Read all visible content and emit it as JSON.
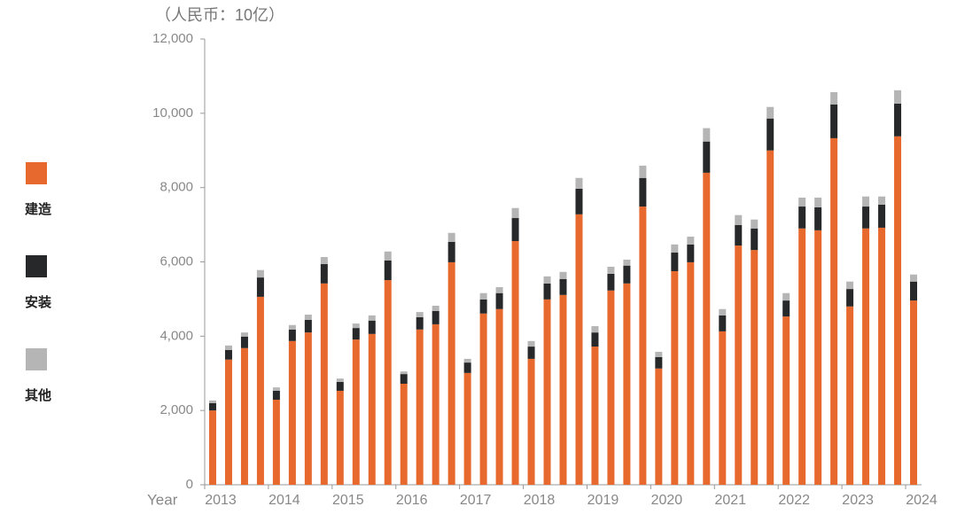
{
  "chart_data": {
    "type": "stacked_bar",
    "unit_label": "（人民币：10亿）",
    "x_label": "Year",
    "categories": [
      "2013",
      null,
      null,
      null,
      "2014",
      null,
      null,
      null,
      "2015",
      null,
      null,
      null,
      "2016",
      null,
      null,
      null,
      "2017",
      null,
      null,
      null,
      "2018",
      null,
      null,
      null,
      "2019",
      null,
      null,
      null,
      "2020",
      null,
      null,
      null,
      "2021",
      null,
      null,
      null,
      "2022",
      null,
      null,
      null,
      "2023",
      null,
      null,
      null,
      "2024"
    ],
    "series": [
      {
        "name": "建造",
        "color": "#e8692e",
        "values": [
          2000,
          3370,
          3680,
          5060,
          2290,
          3870,
          4100,
          5420,
          2530,
          3910,
          4060,
          5510,
          2720,
          4180,
          4320,
          5990,
          3010,
          4610,
          4730,
          6560,
          3390,
          4990,
          5110,
          7280,
          3720,
          5230,
          5420,
          7490,
          3130,
          5750,
          5990,
          8400,
          4130,
          6440,
          6320,
          9000,
          4530,
          6900,
          6850,
          9330,
          4800,
          6900,
          6920,
          9380,
          4960
        ]
      },
      {
        "name": "安装",
        "color": "#26282a",
        "values": [
          200,
          260,
          310,
          520,
          240,
          310,
          340,
          520,
          240,
          310,
          360,
          530,
          260,
          330,
          360,
          550,
          280,
          380,
          430,
          620,
          330,
          430,
          430,
          690,
          380,
          450,
          480,
          770,
          310,
          500,
          480,
          840,
          430,
          550,
          580,
          860,
          430,
          590,
          620,
          910,
          470,
          590,
          620,
          880,
          510
        ]
      },
      {
        "name": "其他",
        "color": "#b5b5b5",
        "values": [
          70,
          120,
          110,
          200,
          90,
          120,
          140,
          190,
          90,
          120,
          140,
          240,
          70,
          140,
          140,
          240,
          100,
          170,
          160,
          270,
          150,
          190,
          190,
          290,
          170,
          190,
          160,
          330,
          140,
          220,
          210,
          360,
          170,
          270,
          240,
          310,
          200,
          240,
          260,
          330,
          200,
          270,
          220,
          360,
          190
        ]
      }
    ],
    "ylim": [
      0,
      12000
    ],
    "yticks": [
      0,
      {
        "value": 2000,
        "label": "2,000"
      },
      {
        "value": 4000,
        "label": "4,000"
      },
      {
        "value": 6000,
        "label": "6,000"
      },
      {
        "value": 8000,
        "label": "8,000"
      },
      {
        "value": 10000,
        "label": "10,000"
      },
      {
        "value": 12000,
        "label": "12,000"
      }
    ],
    "legend": "left"
  }
}
